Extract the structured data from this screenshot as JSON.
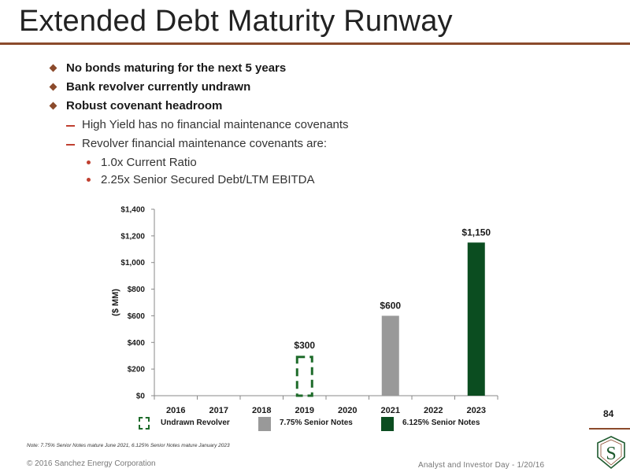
{
  "title": "Extended Debt Maturity Runway",
  "bullets": [
    "No bonds maturing for the next 5 years",
    "Bank revolver currently undrawn",
    "Robust covenant headroom"
  ],
  "sub_bullets": [
    "High Yield has no financial maintenance covenants",
    "Revolver financial maintenance covenants are:"
  ],
  "sub_sub_bullets": [
    "1.0x Current Ratio",
    "2.25x Senior Secured Debt/LTM EBITDA"
  ],
  "colors": {
    "accent": "#8b4a2b",
    "bullet_dash": "#c04030",
    "senior_notes_775": "#999999",
    "senior_notes_6125": "#0b4d20",
    "undrawn_revolver": "#1e6b2a"
  },
  "chart_data": {
    "type": "bar",
    "categories": [
      "2016",
      "2017",
      "2018",
      "2019",
      "2020",
      "2021",
      "2022",
      "2023"
    ],
    "ylabel": "($ MM)",
    "ylim": [
      0,
      1400
    ],
    "y_ticks": [
      0,
      200,
      400,
      600,
      800,
      1000,
      1200,
      1400
    ],
    "y_tick_labels": [
      "$0",
      "$200",
      "$400",
      "$600",
      "$800",
      "$1,000",
      "$1,200",
      "$1,400"
    ],
    "grid": false,
    "legend_position": "bottom",
    "series": [
      {
        "name": "Undrawn Revolver",
        "style": "dashed-outline",
        "values": [
          0,
          0,
          0,
          300,
          0,
          0,
          0,
          0
        ]
      },
      {
        "name": "7.75% Senior Notes",
        "style": "solid",
        "values": [
          0,
          0,
          0,
          0,
          0,
          600,
          0,
          0
        ]
      },
      {
        "name": "6.125% Senior Notes",
        "style": "solid",
        "values": [
          0,
          0,
          0,
          0,
          0,
          0,
          0,
          1150
        ]
      }
    ],
    "data_labels": [
      {
        "category": "2019",
        "text": "$300"
      },
      {
        "category": "2021",
        "text": "$600"
      },
      {
        "category": "2023",
        "text": "$1,150"
      }
    ]
  },
  "footnote": "Note: 7.75% Senior Notes mature June 2021, 6.125% Senior Notes mature January 2023",
  "page_number": "84",
  "copyright": "© 2016 Sanchez Energy Corporation",
  "event": "Analyst and Investor Day - 1/20/16",
  "logo_letter": "S"
}
